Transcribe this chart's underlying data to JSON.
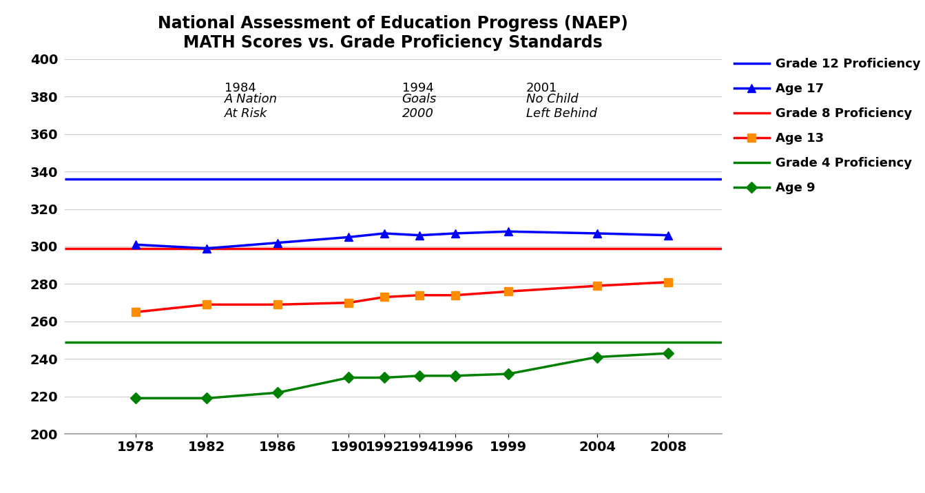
{
  "title_line1": "National Assessment of Education Progress (NAEP)",
  "title_line2": "MATH Scores vs. Grade Proficiency Standards",
  "years": [
    1978,
    1982,
    1986,
    1990,
    1992,
    1994,
    1996,
    1999,
    2004,
    2008
  ],
  "age17": [
    301,
    299,
    302,
    305,
    307,
    306,
    307,
    308,
    307,
    306
  ],
  "age13": [
    265,
    269,
    269,
    270,
    273,
    274,
    274,
    276,
    279,
    281
  ],
  "age9": [
    219,
    219,
    222,
    230,
    230,
    231,
    231,
    232,
    241,
    243
  ],
  "grade12_proficiency": 336,
  "grade8_proficiency": 299,
  "grade4_proficiency": 249,
  "blue_color": "#0000FF",
  "red_color": "#FF0000",
  "orange_color": "#FF8C00",
  "green_color": "#008000",
  "ylim": [
    200,
    400
  ],
  "yticks": [
    200,
    220,
    240,
    260,
    280,
    300,
    320,
    340,
    360,
    380,
    400
  ],
  "xlim_left": 1974,
  "xlim_right": 2011,
  "background_color": "#FFFFFF",
  "ann1_year_label": "1984",
  "ann1_italic": "A Nation\nAt Risk",
  "ann1_x": 1983,
  "ann1_y": 388,
  "ann2_year_label": "1994",
  "ann2_italic": "Goals\n2000",
  "ann2_x": 1993,
  "ann2_y": 388,
  "ann3_year_label": "2001",
  "ann3_italic": "No Child\nLeft Behind",
  "ann3_x": 2000,
  "ann3_y": 388
}
